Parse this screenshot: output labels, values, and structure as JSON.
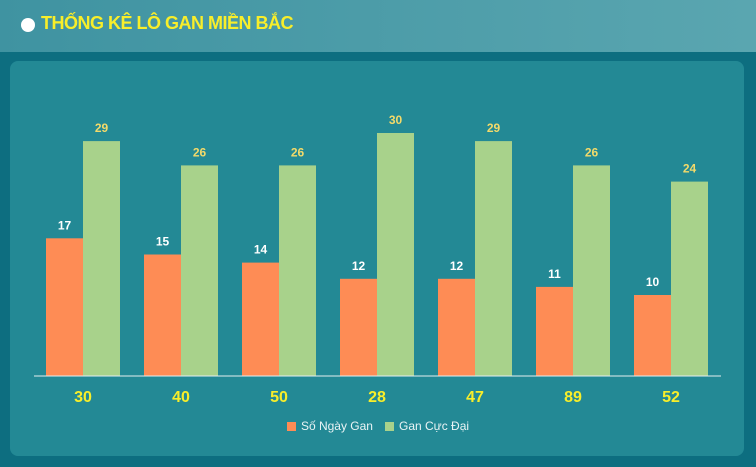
{
  "header": {
    "title": "THỐNG KÊ LÔ GAN MIỀN BẮC"
  },
  "colors": {
    "header_title": "#f8ee2a",
    "series_1": "#fe8c55",
    "series_2": "#a8d28b",
    "category_label": "#f8ee2a",
    "value_label_1": "#ffffff",
    "value_label_2": "#f3da6a"
  },
  "chart_data": {
    "type": "bar",
    "categories": [
      "30",
      "40",
      "50",
      "28",
      "47",
      "89",
      "52"
    ],
    "series": [
      {
        "name": "Số Ngày Gan",
        "values": [
          17,
          15,
          14,
          12,
          12,
          11,
          10
        ]
      },
      {
        "name": "Gan Cực Đại",
        "values": [
          29,
          26,
          26,
          30,
          29,
          26,
          24
        ]
      }
    ],
    "ylim": [
      0,
      30
    ],
    "grid": false,
    "legend_position": "bottom-center",
    "data_labels": true
  }
}
